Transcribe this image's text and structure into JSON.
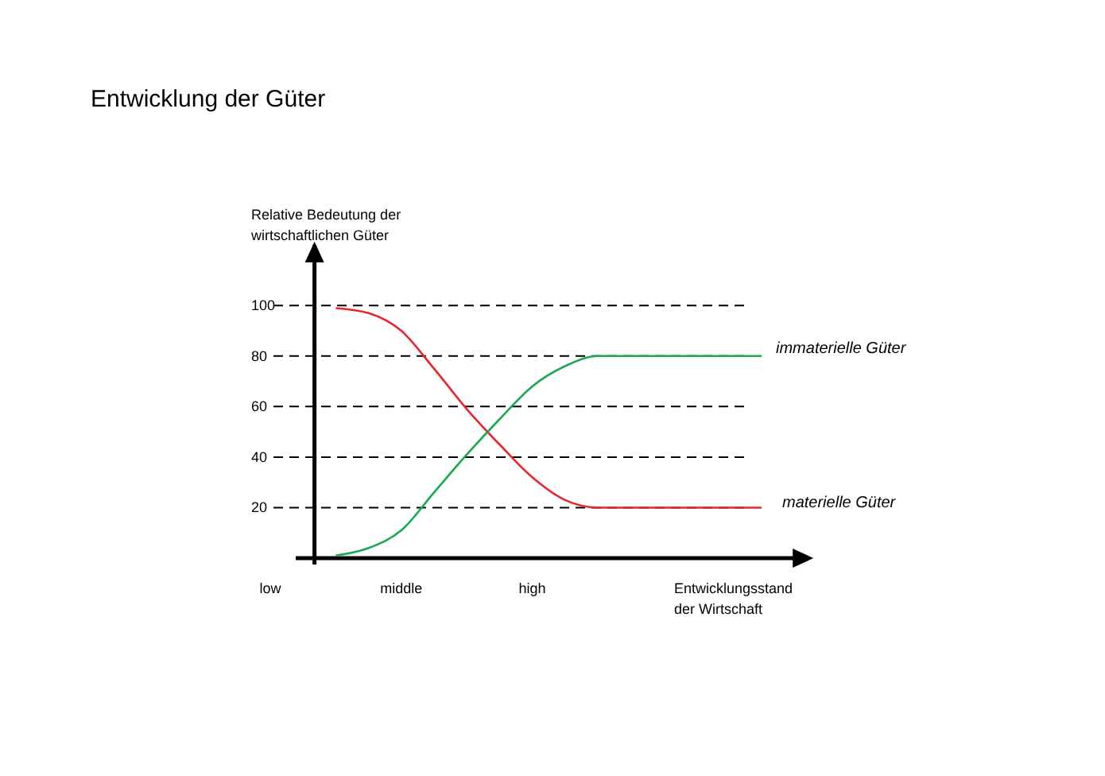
{
  "chart_data": {
    "type": "line",
    "title": "Entwicklung der Güter",
    "ylabel": "Relative Bedeutung der\nwirtschaftlichen Güter",
    "xlabel": "Entwicklungsstand\nder Wirtschaft",
    "categories": [
      "low",
      null,
      null,
      null,
      "middle",
      null,
      null,
      null,
      "high",
      null,
      null,
      null,
      null,
      null,
      null,
      null,
      null
    ],
    "ylim": [
      0,
      124
    ],
    "yticks": [
      20,
      40,
      60,
      80,
      100
    ],
    "grid": "y",
    "line_style": "solid",
    "legend": false,
    "series": [
      {
        "name": "materielle Güter",
        "color": "#e8262b",
        "values": [
          null,
          null,
          99,
          97,
          90,
          75,
          59,
          45,
          32,
          23,
          20,
          20,
          20,
          20,
          20,
          20,
          null
        ]
      },
      {
        "name": "immaterielle Güter",
        "color": "#1aa850",
        "values": [
          null,
          null,
          1,
          4,
          11,
          26,
          41,
          55,
          68,
          76,
          80,
          80,
          80,
          80,
          80,
          80,
          null
        ]
      }
    ]
  }
}
